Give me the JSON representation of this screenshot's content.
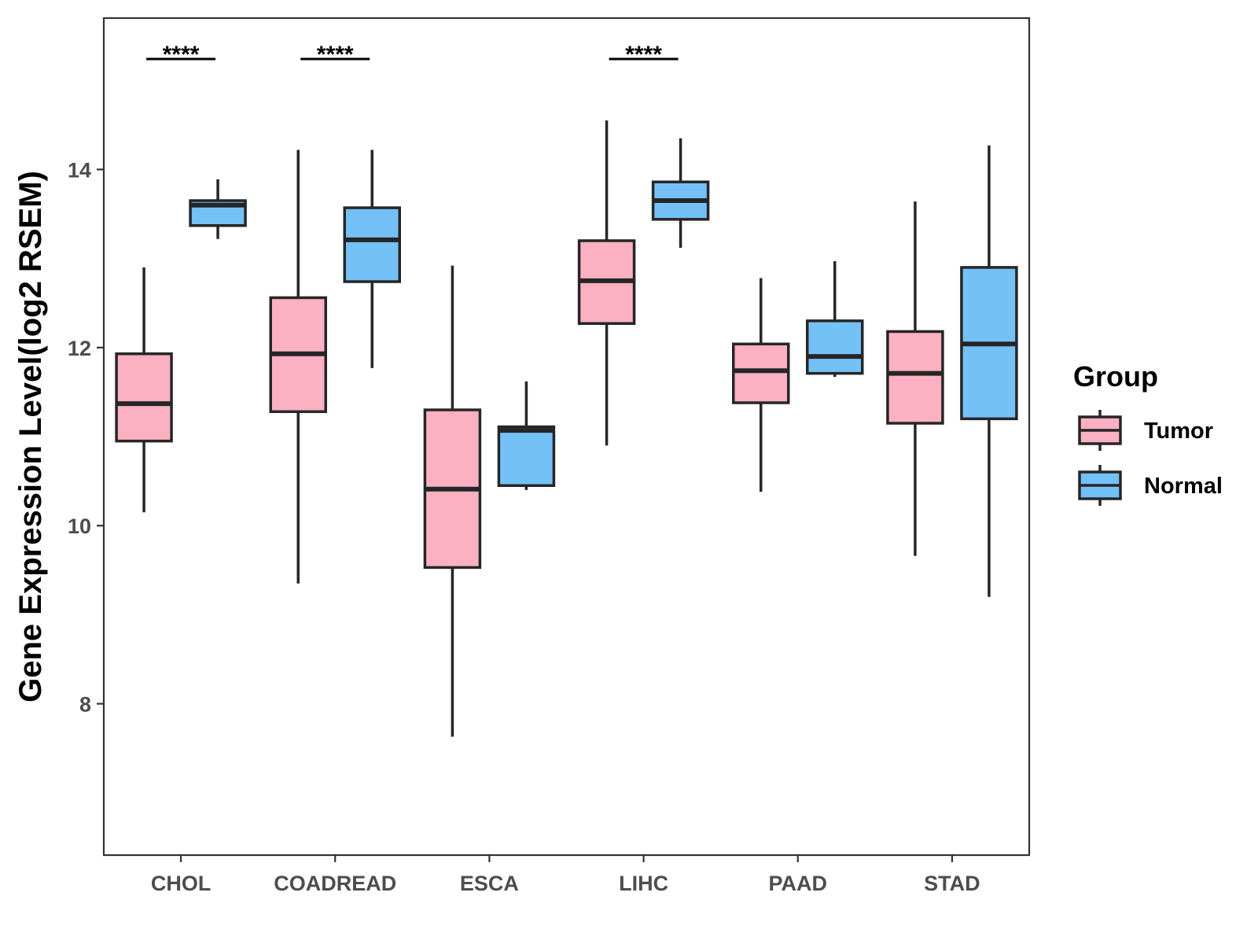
{
  "chart_data": {
    "type": "boxplot",
    "title": "",
    "xlabel": "",
    "ylabel": "Gene Expression Level(log2 RSEM)",
    "ylim": [
      6.3,
      15.7
    ],
    "yticks": [
      8,
      10,
      12,
      14
    ],
    "categories": [
      "CHOL",
      "COADREAD",
      "ESCA",
      "LIHC",
      "PAAD",
      "STAD"
    ],
    "legend": {
      "title": "Group",
      "position": "right",
      "entries": [
        "Tumor",
        "Normal"
      ]
    },
    "series": [
      {
        "name": "Tumor",
        "color": "#FBB1C1",
        "boxes": [
          {
            "category": "CHOL",
            "whisker_low": 10.15,
            "q1": 10.95,
            "median": 11.37,
            "q3": 11.93,
            "whisker_high": 12.9
          },
          {
            "category": "COADREAD",
            "whisker_low": 9.35,
            "q1": 11.28,
            "median": 11.93,
            "q3": 12.56,
            "whisker_high": 14.22
          },
          {
            "category": "ESCA",
            "whisker_low": 7.63,
            "q1": 9.53,
            "median": 10.41,
            "q3": 11.3,
            "whisker_high": 12.92
          },
          {
            "category": "LIHC",
            "whisker_low": 10.9,
            "q1": 12.27,
            "median": 12.75,
            "q3": 13.2,
            "whisker_high": 14.55
          },
          {
            "category": "PAAD",
            "whisker_low": 10.38,
            "q1": 11.38,
            "median": 11.74,
            "q3": 12.04,
            "whisker_high": 12.78
          },
          {
            "category": "STAD",
            "whisker_low": 9.66,
            "q1": 11.15,
            "median": 11.71,
            "q3": 12.18,
            "whisker_high": 13.64
          }
        ]
      },
      {
        "name": "Normal",
        "color": "#74C1F8",
        "boxes": [
          {
            "category": "CHOL",
            "whisker_low": 13.22,
            "q1": 13.37,
            "median": 13.6,
            "q3": 13.65,
            "whisker_high": 13.89
          },
          {
            "category": "COADREAD",
            "whisker_low": 11.77,
            "q1": 12.74,
            "median": 13.21,
            "q3": 13.57,
            "whisker_high": 14.22
          },
          {
            "category": "ESCA",
            "whisker_low": 10.4,
            "q1": 10.45,
            "median": 11.07,
            "q3": 11.11,
            "whisker_high": 11.62
          },
          {
            "category": "LIHC",
            "whisker_low": 13.12,
            "q1": 13.44,
            "median": 13.65,
            "q3": 13.86,
            "whisker_high": 14.35
          },
          {
            "category": "PAAD",
            "whisker_low": 11.67,
            "q1": 11.71,
            "median": 11.9,
            "q3": 12.3,
            "whisker_high": 12.97
          },
          {
            "category": "STAD",
            "whisker_low": 9.2,
            "q1": 11.2,
            "median": 12.04,
            "q3": 12.9,
            "whisker_high": 14.27
          }
        ]
      }
    ],
    "annotations": [
      {
        "category": "CHOL",
        "text": "****"
      },
      {
        "category": "COADREAD",
        "text": "****"
      },
      {
        "category": "LIHC",
        "text": "****"
      }
    ]
  }
}
